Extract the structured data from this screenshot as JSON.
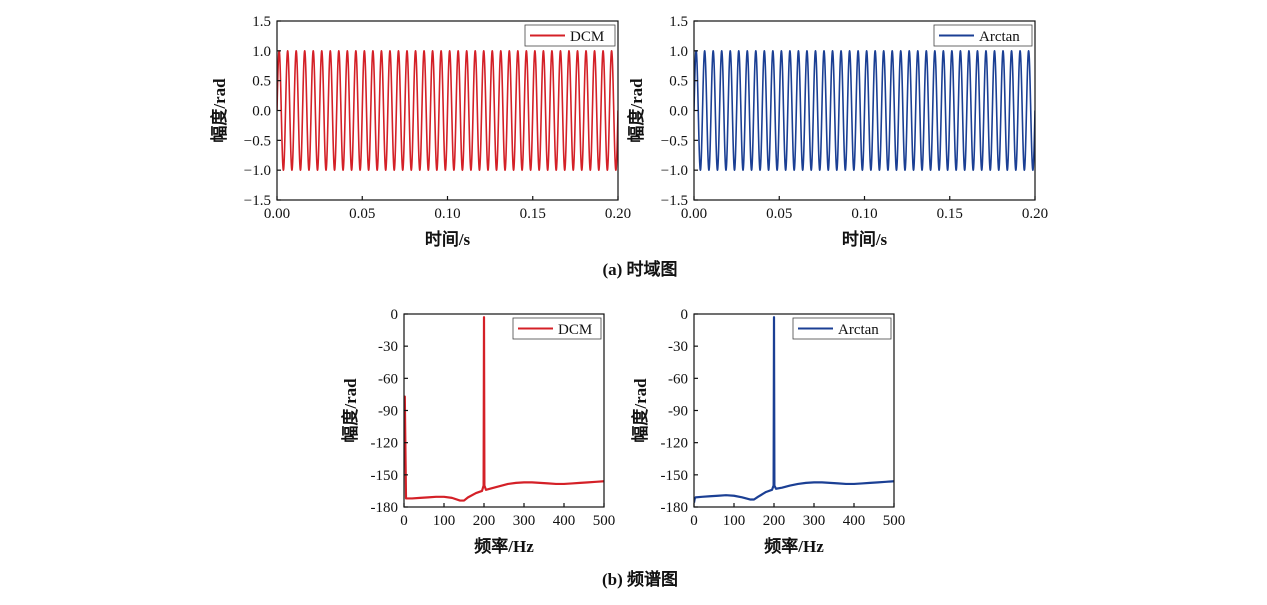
{
  "captions": {
    "time_domain": "(a) 时域图",
    "spectrum": "(b) 频谱图"
  },
  "chart_data": [
    {
      "type": "line",
      "panel": "time-dcm",
      "xlabel": "时间/s",
      "ylabel": "幅度/rad",
      "xlim": [
        0,
        0.2
      ],
      "ylim": [
        -1.5,
        1.5
      ],
      "xticks": [
        "0.00",
        "0.05",
        "0.10",
        "0.15",
        "0.20"
      ],
      "yticks": [
        "1.5",
        "1.0",
        "0.5",
        "0.0",
        "−0.5",
        "−1.0",
        "−1.5"
      ],
      "legend_position": "top-right",
      "grid": false,
      "series": [
        {
          "name": "DCM",
          "color": "#d42027",
          "signal": "sine",
          "frequency_hz": 200,
          "amplitude": 1.0
        }
      ]
    },
    {
      "type": "line",
      "panel": "time-arctan",
      "xlabel": "时间/s",
      "ylabel": "幅度/rad",
      "xlim": [
        0,
        0.2
      ],
      "ylim": [
        -1.5,
        1.5
      ],
      "xticks": [
        "0.00",
        "0.05",
        "0.10",
        "0.15",
        "0.20"
      ],
      "yticks": [
        "1.5",
        "1.0",
        "0.5",
        "0.0",
        "−0.5",
        "−1.0",
        "−1.5"
      ],
      "legend_position": "top-right",
      "grid": false,
      "series": [
        {
          "name": "Arctan",
          "color": "#1b3f94",
          "signal": "sine",
          "frequency_hz": 200,
          "amplitude": 1.0
        }
      ]
    },
    {
      "type": "line",
      "panel": "spectrum-dcm",
      "xlabel": "频率/Hz",
      "ylabel": "幅度/rad",
      "xlim": [
        0,
        500
      ],
      "ylim": [
        -180,
        0
      ],
      "xticks": [
        "0",
        "100",
        "200",
        "300",
        "400",
        "500"
      ],
      "yticks": [
        "0",
        "-30",
        "-60",
        "-90",
        "-120",
        "-150",
        "-180"
      ],
      "legend_position": "top-right",
      "grid": false,
      "series": [
        {
          "name": "DCM",
          "color": "#d42027",
          "x": [
            0,
            2,
            4,
            5,
            6,
            20,
            40,
            60,
            80,
            100,
            120,
            140,
            150,
            160,
            180,
            195,
            199,
            200,
            201,
            205,
            220,
            240,
            260,
            280,
            300,
            320,
            340,
            360,
            380,
            400,
            420,
            440,
            460,
            480,
            500
          ],
          "y": [
            -77,
            -77,
            -140,
            -172,
            -172,
            -172,
            -171.5,
            -171,
            -170.5,
            -170.5,
            -171.5,
            -174,
            -174,
            -171,
            -167,
            -165,
            -160,
            -3,
            -160,
            -164,
            -162.5,
            -160.5,
            -158.5,
            -157.5,
            -157,
            -157,
            -157.5,
            -158,
            -158.5,
            -158.5,
            -158,
            -157.5,
            -157,
            -156.5,
            -156
          ]
        }
      ]
    },
    {
      "type": "line",
      "panel": "spectrum-arctan",
      "xlabel": "频率/Hz",
      "ylabel": "幅度/rad",
      "xlim": [
        0,
        500
      ],
      "ylim": [
        -180,
        0
      ],
      "xticks": [
        "0",
        "100",
        "200",
        "300",
        "400",
        "500"
      ],
      "yticks": [
        "0",
        "-30",
        "-60",
        "-90",
        "-120",
        "-150",
        "-180"
      ],
      "legend_position": "top-right",
      "grid": false,
      "series": [
        {
          "name": "Arctan",
          "color": "#1b3f94",
          "x": [
            0,
            2,
            4,
            20,
            40,
            60,
            80,
            100,
            120,
            140,
            150,
            160,
            180,
            195,
            199,
            200,
            201,
            205,
            220,
            240,
            260,
            280,
            300,
            320,
            340,
            360,
            380,
            400,
            420,
            440,
            460,
            480,
            500
          ],
          "y": [
            -176,
            -172,
            -171,
            -170.5,
            -170,
            -169.5,
            -169,
            -169.5,
            -171,
            -173,
            -173,
            -170.5,
            -166,
            -164,
            -160,
            -3,
            -160,
            -163,
            -162,
            -160,
            -158.5,
            -157.5,
            -157,
            -157,
            -157.5,
            -158,
            -158.5,
            -158.5,
            -158,
            -157.5,
            -157,
            -156.5,
            -156
          ]
        }
      ]
    }
  ]
}
